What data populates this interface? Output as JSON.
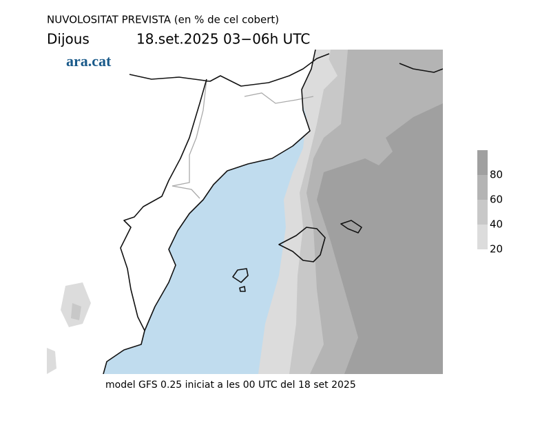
{
  "header": {
    "title": "NUVOLOSITAT PREVISTA (en % de cel cobert)",
    "day": "Dijous",
    "date": "18.set.2025 03−06h UTC"
  },
  "logo": "ara.cat",
  "footer": "model GFS 0.25 iniciat a les 00 UTC del 18 set 2025",
  "legend": {
    "range": [
      20,
      100
    ],
    "ticks": [
      20,
      40,
      60,
      80
    ],
    "colors": [
      "#dcdcdc",
      "#c8c8c8",
      "#b4b4b4",
      "#a0a0a0"
    ]
  }
}
